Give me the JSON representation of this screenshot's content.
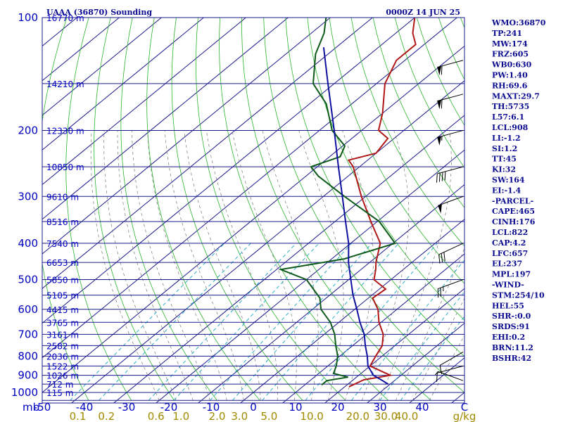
{
  "header": {
    "station": "UAAA (36870) Sounding",
    "time": "0000Z 14 JUN 25"
  },
  "indices": [
    "WMO:36870",
    "TP:241",
    "MW:174",
    "FRZ:605",
    "WB0:630",
    "PW:1.40",
    "RH:69.6",
    "MAXT:29.7",
    "TH:5735",
    "L57:6.1",
    "LCL:908",
    "LI:-1.2",
    "SI:1.2",
    "TT:45",
    "KI:32",
    "SW:164",
    "EI:-1.4",
    "-PARCEL-",
    "CAPE:465",
    "CINH:176",
    "LCL:822",
    "CAP:4.2",
    "LFC:657",
    "EL:237",
    "MPL:197",
    "-WIND-",
    "STM:254/10",
    "HEL:55",
    "SHR-:0.0",
    "SRDS:91",
    "EHI:0.2",
    "BRN:11.2",
    "BSHR:42"
  ],
  "axes": {
    "pressure_unit": "mb",
    "mixing_unit": "g/kg",
    "pressure_labels": [
      {
        "p": 100,
        "label": "100"
      },
      {
        "p": 200,
        "label": "200"
      },
      {
        "p": 300,
        "label": "300"
      },
      {
        "p": 400,
        "label": "400"
      },
      {
        "p": 500,
        "label": "500"
      },
      {
        "p": 600,
        "label": "600"
      },
      {
        "p": 700,
        "label": "700"
      },
      {
        "p": 800,
        "label": "800"
      },
      {
        "p": 900,
        "label": "900"
      },
      {
        "p": 1000,
        "label": "1000"
      }
    ],
    "height_labels": [
      {
        "p": 100,
        "label": "16770 m"
      },
      {
        "p": 150,
        "label": "14210 m"
      },
      {
        "p": 200,
        "label": "12330 m"
      },
      {
        "p": 250,
        "label": "10850 m"
      },
      {
        "p": 300,
        "label": "9610 m"
      },
      {
        "p": 350,
        "label": "8516 m"
      },
      {
        "p": 400,
        "label": "7540 m"
      },
      {
        "p": 450,
        "label": "6653 m"
      },
      {
        "p": 500,
        "label": "5850 m"
      },
      {
        "p": 550,
        "label": "5105 m"
      },
      {
        "p": 600,
        "label": "4415 m"
      },
      {
        "p": 650,
        "label": "3765 m"
      },
      {
        "p": 700,
        "label": "3161 m"
      },
      {
        "p": 750,
        "label": "2582 m"
      },
      {
        "p": 800,
        "label": "2036 m"
      },
      {
        "p": 850,
        "label": "1522 m"
      },
      {
        "p": 900,
        "label": "1026 m"
      },
      {
        "p": 950,
        "label": "712 m"
      },
      {
        "p": 1000,
        "label": "115 m"
      }
    ],
    "temp_labels": [
      "-50",
      "-40",
      "-30",
      "-20",
      "-10",
      "0",
      "10",
      "20",
      "30",
      "40",
      "C"
    ],
    "mixing_labels": [
      {
        "w": 0.1,
        "label": "0.1"
      },
      {
        "w": 0.2,
        "label": "0.2"
      },
      {
        "w": 0.6,
        "label": "0.6"
      },
      {
        "w": 1.0,
        "label": "1.0"
      },
      {
        "w": 2.0,
        "label": "2.0"
      },
      {
        "w": 3.0,
        "label": "3.0"
      },
      {
        "w": 5.0,
        "label": "5.0"
      },
      {
        "w": 10.0,
        "label": "10.0"
      },
      {
        "w": 20.0,
        "label": "20.0"
      },
      {
        "w": 30.0,
        "label": "30.0"
      },
      {
        "w": 40.0,
        "label": "40.0"
      }
    ]
  },
  "colors": {
    "isobar": "#1a1a8c",
    "isotherm": "#1a1a8c",
    "dry_adiabat": "#2bb52b",
    "moist_adiabat": "#777777",
    "mixing_ratio": "#1aa5c0",
    "temperature": "#b01818",
    "dewpoint": "#0d5a1a",
    "parcel": "#1010a0",
    "barb": "#000000"
  },
  "chart_data": {
    "type": "line",
    "title": "UAAA (36870) Sounding",
    "xlabel": "C",
    "ylabel": "mb",
    "x_unit": "C",
    "p_range": [
      1000,
      100
    ],
    "t_range_at_1000mb": [
      -50,
      50
    ],
    "series": [
      {
        "name": "temperature",
        "points": [
          {
            "p": 965,
            "t": 21.0
          },
          {
            "p": 925,
            "t": 22.5
          },
          {
            "p": 900,
            "t": 27.5
          },
          {
            "p": 850,
            "t": 20.0
          },
          {
            "p": 800,
            "t": 18.5
          },
          {
            "p": 750,
            "t": 17.0
          },
          {
            "p": 700,
            "t": 14.0
          },
          {
            "p": 650,
            "t": 9.5
          },
          {
            "p": 600,
            "t": 5.5
          },
          {
            "p": 560,
            "t": 1.0
          },
          {
            "p": 530,
            "t": 1.5
          },
          {
            "p": 500,
            "t": -4.0
          },
          {
            "p": 470,
            "t": -6.5
          },
          {
            "p": 450,
            "t": -8.5
          },
          {
            "p": 400,
            "t": -13.0
          },
          {
            "p": 350,
            "t": -21.5
          },
          {
            "p": 300,
            "t": -31.0
          },
          {
            "p": 250,
            "t": -41.5
          },
          {
            "p": 240,
            "t": -44.5
          },
          {
            "p": 230,
            "t": -40.0
          },
          {
            "p": 210,
            "t": -41.5
          },
          {
            "p": 200,
            "t": -46.0
          },
          {
            "p": 180,
            "t": -50.0
          },
          {
            "p": 150,
            "t": -58.0
          },
          {
            "p": 130,
            "t": -62.0
          },
          {
            "p": 118,
            "t": -62.0
          },
          {
            "p": 110,
            "t": -66.0
          },
          {
            "p": 100,
            "t": -70.0
          }
        ]
      },
      {
        "name": "dewpoint",
        "points": [
          {
            "p": 955,
            "t": 14.0
          },
          {
            "p": 930,
            "t": 14.0
          },
          {
            "p": 910,
            "t": 18.0
          },
          {
            "p": 890,
            "t": 13.5
          },
          {
            "p": 850,
            "t": 12.0
          },
          {
            "p": 800,
            "t": 9.5
          },
          {
            "p": 750,
            "t": 6.0
          },
          {
            "p": 700,
            "t": 2.5
          },
          {
            "p": 650,
            "t": -2.0
          },
          {
            "p": 600,
            "t": -8.0
          },
          {
            "p": 560,
            "t": -11.5
          },
          {
            "p": 500,
            "t": -20.0
          },
          {
            "p": 470,
            "t": -29.0
          },
          {
            "p": 440,
            "t": -17.0
          },
          {
            "p": 400,
            "t": -9.5
          },
          {
            "p": 350,
            "t": -19.5
          },
          {
            "p": 300,
            "t": -35.0
          },
          {
            "p": 265,
            "t": -47.0
          },
          {
            "p": 250,
            "t": -51.5
          },
          {
            "p": 235,
            "t": -47.5
          },
          {
            "p": 220,
            "t": -49.5
          },
          {
            "p": 200,
            "t": -57.0
          },
          {
            "p": 170,
            "t": -66.0
          },
          {
            "p": 150,
            "t": -75.0
          },
          {
            "p": 125,
            "t": -83.0
          },
          {
            "p": 110,
            "t": -87.0
          },
          {
            "p": 100,
            "t": -91.0
          }
        ]
      },
      {
        "name": "parcel",
        "points": [
          {
            "p": 950,
            "t": 29.5
          },
          {
            "p": 920,
            "t": 26.0
          },
          {
            "p": 900,
            "t": 23.5
          },
          {
            "p": 850,
            "t": 19.5
          },
          {
            "p": 800,
            "t": 16.5
          },
          {
            "p": 750,
            "t": 13.0
          },
          {
            "p": 700,
            "t": 9.5
          },
          {
            "p": 650,
            "t": 5.0
          },
          {
            "p": 600,
            "t": 0.5
          },
          {
            "p": 550,
            "t": -4.5
          },
          {
            "p": 500,
            "t": -9.5
          },
          {
            "p": 450,
            "t": -15.0
          },
          {
            "p": 400,
            "t": -20.5
          },
          {
            "p": 350,
            "t": -27.5
          },
          {
            "p": 300,
            "t": -35.5
          },
          {
            "p": 250,
            "t": -45.0
          },
          {
            "p": 200,
            "t": -56.5
          },
          {
            "p": 150,
            "t": -71.5
          },
          {
            "p": 120,
            "t": -83.0
          }
        ]
      }
    ],
    "wind_barbs": [
      {
        "p": 130,
        "dir": 255,
        "speed": 60
      },
      {
        "p": 160,
        "dir": 255,
        "speed": 60
      },
      {
        "p": 200,
        "dir": 255,
        "speed": 55
      },
      {
        "p": 250,
        "dir": 255,
        "speed": 40
      },
      {
        "p": 300,
        "dir": 250,
        "speed": 50
      },
      {
        "p": 400,
        "dir": 245,
        "speed": 30
      },
      {
        "p": 500,
        "dir": 250,
        "speed": 25
      },
      {
        "p": 780,
        "dir": 240,
        "speed": 10
      },
      {
        "p": 850,
        "dir": 255,
        "speed": 10
      },
      {
        "p": 930,
        "dir": 290,
        "speed": 5
      }
    ]
  }
}
